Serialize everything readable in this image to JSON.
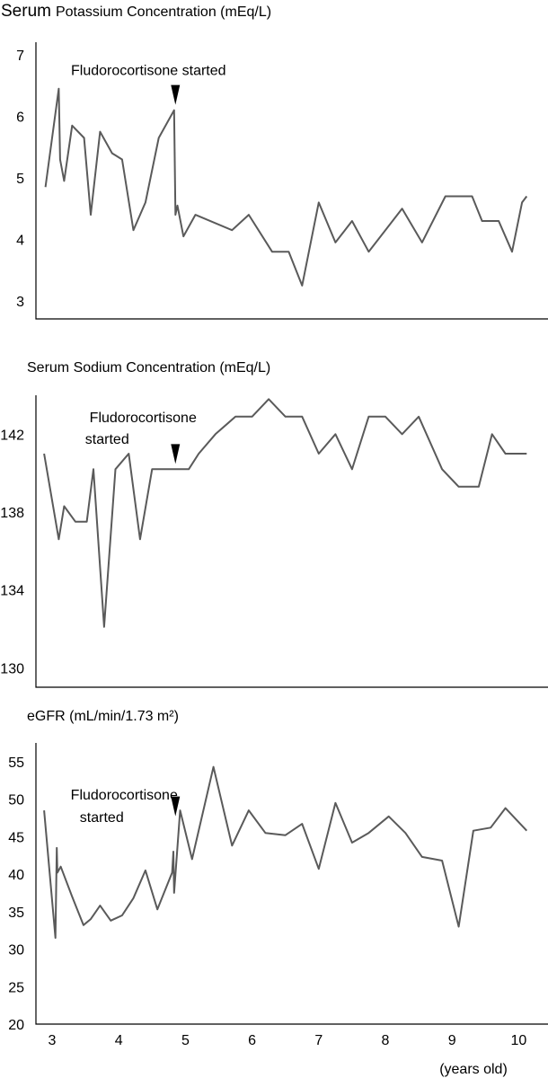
{
  "chart_data": [
    {
      "type": "line",
      "title_prefix": "Serum",
      "title": "Potassium Concentration (mEq/L)",
      "xlabel": "",
      "ylabel": "",
      "ylim": [
        3,
        7
      ],
      "xlim": [
        2.85,
        10.15
      ],
      "yticks": [
        "3",
        "4",
        "5",
        "6",
        "7"
      ],
      "annotation": "Fludorocortisone started",
      "annotation_x": 4.85,
      "annotation_y": 6.1,
      "series": [
        {
          "values": [
            [
              2.9,
              4.85
            ],
            [
              3.1,
              6.45
            ],
            [
              3.12,
              5.3
            ],
            [
              3.18,
              4.95
            ],
            [
              3.3,
              5.85
            ],
            [
              3.48,
              5.65
            ],
            [
              3.58,
              4.4
            ],
            [
              3.72,
              5.75
            ],
            [
              3.9,
              5.4
            ],
            [
              4.05,
              5.3
            ],
            [
              4.22,
              4.15
            ],
            [
              4.4,
              4.6
            ],
            [
              4.6,
              5.65
            ],
            [
              4.83,
              6.1
            ],
            [
              4.85,
              4.4
            ],
            [
              4.88,
              4.55
            ],
            [
              4.97,
              4.05
            ],
            [
              5.15,
              4.4
            ],
            [
              5.7,
              4.15
            ],
            [
              5.95,
              4.4
            ],
            [
              6.3,
              3.8
            ],
            [
              6.55,
              3.8
            ],
            [
              6.75,
              3.25
            ],
            [
              7.0,
              4.6
            ],
            [
              7.25,
              3.95
            ],
            [
              7.5,
              4.3
            ],
            [
              7.75,
              3.8
            ],
            [
              8.25,
              4.5
            ],
            [
              8.55,
              3.95
            ],
            [
              8.9,
              4.7
            ],
            [
              9.3,
              4.7
            ],
            [
              9.45,
              4.3
            ],
            [
              9.7,
              4.3
            ],
            [
              9.9,
              3.8
            ],
            [
              10.05,
              4.6
            ],
            [
              10.12,
              4.7
            ]
          ]
        }
      ]
    },
    {
      "type": "line",
      "title": "Serum Sodium Concentration (mEq/L)",
      "xlabel": "",
      "ylabel": "",
      "ylim": [
        129,
        144
      ],
      "xlim": [
        2.85,
        10.15
      ],
      "yticks": [
        "130",
        "134",
        "138",
        "142"
      ],
      "ytick_values": [
        130,
        134,
        138,
        142
      ],
      "annotation_lines": [
        "Fludorocortisone",
        "started"
      ],
      "annotation_x": 4.85,
      "annotation_y": 140.2,
      "series": [
        {
          "values": [
            [
              2.88,
              141
            ],
            [
              3.1,
              136.6
            ],
            [
              3.18,
              138.3
            ],
            [
              3.35,
              137.5
            ],
            [
              3.52,
              137.5
            ],
            [
              3.62,
              140.2
            ],
            [
              3.78,
              132.1
            ],
            [
              3.95,
              140.2
            ],
            [
              4.15,
              141
            ],
            [
              4.32,
              136.6
            ],
            [
              4.5,
              140.2
            ],
            [
              4.8,
              140.2
            ],
            [
              5.05,
              140.2
            ],
            [
              5.2,
              141
            ],
            [
              5.45,
              142
            ],
            [
              5.75,
              142.9
            ],
            [
              6.0,
              142.9
            ],
            [
              6.25,
              143.8
            ],
            [
              6.5,
              142.9
            ],
            [
              6.75,
              142.9
            ],
            [
              7.0,
              141
            ],
            [
              7.25,
              142
            ],
            [
              7.5,
              140.2
            ],
            [
              7.75,
              142.9
            ],
            [
              8.0,
              142.9
            ],
            [
              8.25,
              142
            ],
            [
              8.5,
              142.9
            ],
            [
              8.85,
              140.2
            ],
            [
              9.1,
              139.3
            ],
            [
              9.4,
              139.3
            ],
            [
              9.6,
              142
            ],
            [
              9.8,
              141
            ],
            [
              10.12,
              141
            ]
          ]
        }
      ]
    },
    {
      "type": "line",
      "title": "eGFR (mL/min/1.73 m²)",
      "xlabel": "(years old)",
      "ylabel": "",
      "ylim": [
        20,
        57.5
      ],
      "xlim": [
        2.85,
        10.15
      ],
      "yticks": [
        "20",
        "25",
        "30",
        "35",
        "40",
        "45",
        "50",
        "55"
      ],
      "ytick_values": [
        20,
        25,
        30,
        35,
        40,
        45,
        50,
        55
      ],
      "xticks": [
        "3",
        "4",
        "5",
        "6",
        "7",
        "8",
        "9",
        "10"
      ],
      "xtick_values": [
        3,
        4,
        5,
        6,
        7,
        8,
        9,
        10
      ],
      "annotation_lines": [
        "Fludorocortisone",
        "started"
      ],
      "annotation_x": 4.85,
      "annotation_y": 47.0,
      "series": [
        {
          "values": [
            [
              2.88,
              48.5
            ],
            [
              3.05,
              31.5
            ],
            [
              3.07,
              43.5
            ],
            [
              3.08,
              40.2
            ],
            [
              3.13,
              41.0
            ],
            [
              3.3,
              37.0
            ],
            [
              3.47,
              33.2
            ],
            [
              3.58,
              34.0
            ],
            [
              3.72,
              35.8
            ],
            [
              3.88,
              33.8
            ],
            [
              4.05,
              34.5
            ],
            [
              4.22,
              36.8
            ],
            [
              4.4,
              40.5
            ],
            [
              4.58,
              35.3
            ],
            [
              4.8,
              40.2
            ],
            [
              4.82,
              43.0
            ],
            [
              4.83,
              37.5
            ],
            [
              4.92,
              48.5
            ],
            [
              5.1,
              42.0
            ],
            [
              5.42,
              54.3
            ],
            [
              5.7,
              43.8
            ],
            [
              5.95,
              48.5
            ],
            [
              6.2,
              45.5
            ],
            [
              6.5,
              45.2
            ],
            [
              6.75,
              46.7
            ],
            [
              7.0,
              40.7
            ],
            [
              7.25,
              49.5
            ],
            [
              7.5,
              44.2
            ],
            [
              7.75,
              45.5
            ],
            [
              8.05,
              47.7
            ],
            [
              8.3,
              45.5
            ],
            [
              8.55,
              42.3
            ],
            [
              8.85,
              41.8
            ],
            [
              9.1,
              33.0
            ],
            [
              9.32,
              45.8
            ],
            [
              9.58,
              46.2
            ],
            [
              9.8,
              48.8
            ],
            [
              10.12,
              45.8
            ]
          ]
        }
      ]
    }
  ]
}
